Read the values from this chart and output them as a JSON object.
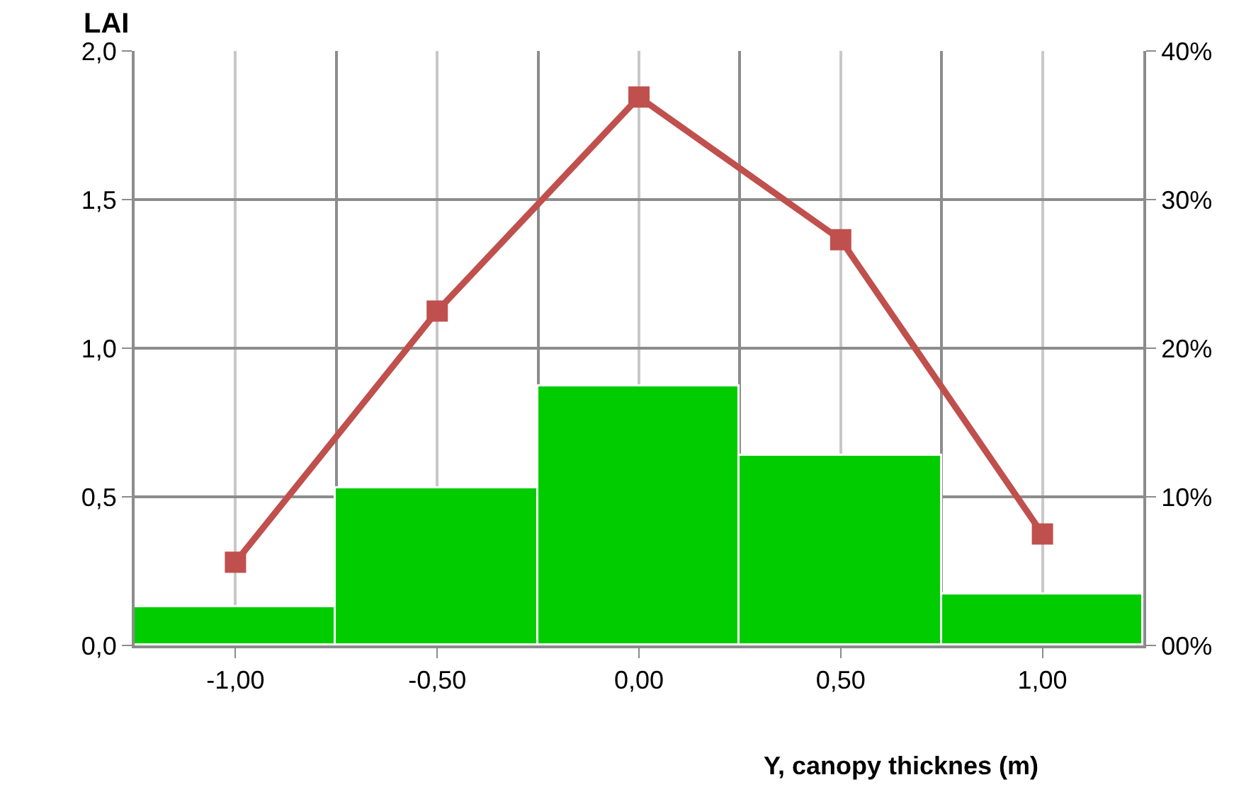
{
  "chart_data": {
    "type": "bar",
    "ylabel": "LAI",
    "xlabel": "Y, canopy thicknes (m)",
    "x": [
      -1,
      -0.5,
      0,
      0.5,
      1
    ],
    "xlim": [
      -1.25,
      1.25
    ],
    "xticks": [
      {
        "value": -1,
        "label": "-1,00"
      },
      {
        "value": -0.5,
        "label": "-0,50"
      },
      {
        "value": 0,
        "label": "0,00"
      },
      {
        "value": 0.5,
        "label": "0,50"
      },
      {
        "value": 1,
        "label": "1,00"
      }
    ],
    "ylim": [
      0,
      2
    ],
    "yticks": [
      {
        "value": 0,
        "label": "0,0"
      },
      {
        "value": 0.5,
        "label": "0,5"
      },
      {
        "value": 1,
        "label": "1,0"
      },
      {
        "value": 1.5,
        "label": "1,5"
      },
      {
        "value": 2,
        "label": "2,0"
      }
    ],
    "y2lim": [
      0,
      40
    ],
    "y2ticks": [
      {
        "value": 0,
        "label": "00%"
      },
      {
        "value": 10,
        "label": "10%"
      },
      {
        "value": 20,
        "label": "20%"
      },
      {
        "value": 30,
        "label": "30%"
      },
      {
        "value": 40,
        "label": "40%"
      }
    ],
    "series": [
      {
        "color": "#00cc00",
        "values": [
          0.13,
          0.53,
          0.87,
          0.64,
          0.17
        ]
      },
      {
        "type": "line",
        "axis": "y2",
        "color": "#c0504d",
        "values": [
          5.6,
          22.5,
          36.9,
          27.3,
          7.5
        ]
      }
    ],
    "marker": "square",
    "line_style": "solid",
    "grid": true
  }
}
